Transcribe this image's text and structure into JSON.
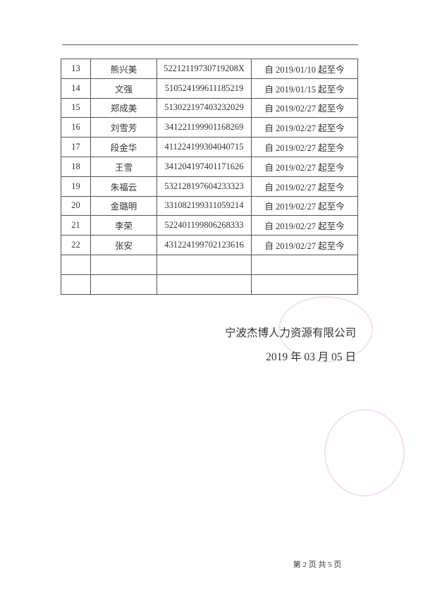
{
  "table": {
    "rows": [
      [
        "13",
        "熊兴美",
        "52212119730719208X",
        "自 2019/01/10 起至今"
      ],
      [
        "14",
        "文强",
        "510524199611185219",
        "自 2019/01/15 起至今"
      ],
      [
        "15",
        "郑成美",
        "513022197403232029",
        "自 2019/02/27 起至今"
      ],
      [
        "16",
        "刘雪芳",
        "341221199901168269",
        "自 2019/02/27 起至今"
      ],
      [
        "17",
        "段金华",
        "411224199304040715",
        "自 2019/02/27 起至今"
      ],
      [
        "18",
        "王雪",
        "341204197401171626",
        "自 2019/02/27 起至今"
      ],
      [
        "19",
        "朱福云",
        "532128197604233323",
        "自 2019/02/27 起至今"
      ],
      [
        "20",
        "金璐明",
        "331082199311059214",
        "自 2019/02/27 起至今"
      ],
      [
        "21",
        "李荣",
        "522401199806268333",
        "自 2019/02/27 起至今"
      ],
      [
        "22",
        "张安",
        "431224199702123616",
        "自 2019/02/27 起至今"
      ],
      [
        "",
        "",
        "",
        ""
      ],
      [
        "",
        "",
        "",
        ""
      ]
    ]
  },
  "company": "宁波杰博人力资源有限公司",
  "date": "2019 年 03 月 05 日",
  "footer": "第 2 页  共 5 页",
  "stamp_color": "#dc5a5a"
}
